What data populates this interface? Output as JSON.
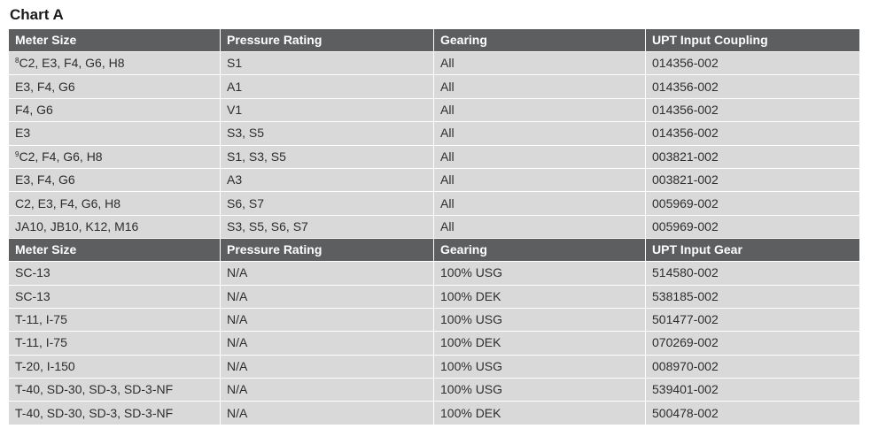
{
  "title": "Chart A",
  "sections": [
    {
      "headers": [
        "Meter Size",
        "Pressure Rating",
        "Gearing",
        "UPT Input Coupling"
      ],
      "rows": [
        {
          "sup": "8",
          "cells": [
            "C2, E3, F4, G6, H8",
            "S1",
            "All",
            "014356-002"
          ]
        },
        {
          "sup": "",
          "cells": [
            "E3, F4, G6",
            "A1",
            "All",
            "014356-002"
          ]
        },
        {
          "sup": "",
          "cells": [
            "F4, G6",
            "V1",
            "All",
            "014356-002"
          ]
        },
        {
          "sup": "",
          "cells": [
            "E3",
            "S3, S5",
            "All",
            "014356-002"
          ]
        },
        {
          "sup": "9",
          "cells": [
            "C2, F4, G6, H8",
            "S1, S3, S5",
            "All",
            "003821-002"
          ]
        },
        {
          "sup": "",
          "cells": [
            "E3, F4, G6",
            "A3",
            "All",
            "003821-002"
          ]
        },
        {
          "sup": "",
          "cells": [
            "C2, E3, F4, G6, H8",
            "S6, S7",
            "All",
            "005969-002"
          ]
        },
        {
          "sup": "",
          "cells": [
            "JA10, JB10, K12, M16",
            "S3, S5, S6, S7",
            "All",
            "005969-002"
          ]
        }
      ]
    },
    {
      "headers": [
        "Meter Size",
        "Pressure Rating",
        "Gearing",
        "UPT Input Gear"
      ],
      "rows": [
        {
          "sup": "",
          "cells": [
            "SC-13",
            "N/A",
            "100% USG",
            "514580-002"
          ]
        },
        {
          "sup": "",
          "cells": [
            "SC-13",
            "N/A",
            "100% DEK",
            "538185-002"
          ]
        },
        {
          "sup": "",
          "cells": [
            "T-11, I-75",
            "N/A",
            "100% USG",
            "501477-002"
          ]
        },
        {
          "sup": "",
          "cells": [
            "T-11, I-75",
            "N/A",
            "100% DEK",
            "070269-002"
          ]
        },
        {
          "sup": "",
          "cells": [
            "T-20, I-150",
            "N/A",
            "100% USG",
            "008970-002"
          ]
        },
        {
          "sup": "",
          "cells": [
            "T-40, SD-30, SD-3, SD-3-NF",
            "N/A",
            "100% USG",
            "539401-002"
          ]
        },
        {
          "sup": "",
          "cells": [
            "T-40, SD-30, SD-3, SD-3-NF",
            "N/A",
            "100% DEK",
            "500478-002"
          ]
        }
      ]
    }
  ],
  "colors": {
    "header_bg": "#5d5e60",
    "header_text": "#ffffff",
    "cell_bg": "#d9d9d9",
    "cell_text": "#2d2d2d"
  }
}
